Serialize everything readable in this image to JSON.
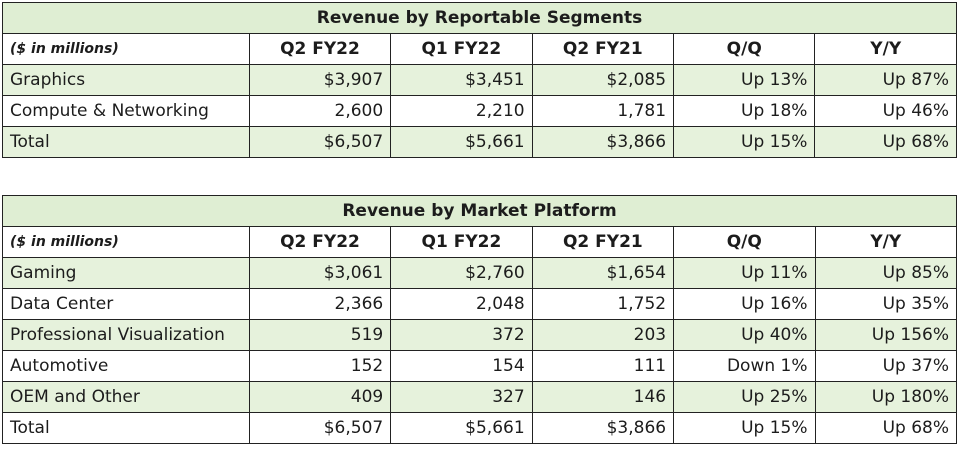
{
  "chart_data": [
    {
      "type": "table",
      "title": "Revenue by Reportable Segments",
      "columns": [
        "($ in millions)",
        "Q2 FY22",
        "Q1 FY22",
        "Q2 FY21",
        "Q/Q",
        "Y/Y"
      ],
      "rows": [
        {
          "label": "Graphics",
          "cells": [
            "$3,907",
            "$3,451",
            "$2,085",
            "Up 13%",
            "Up 87%"
          ],
          "shaded": true
        },
        {
          "label": "Compute & Networking",
          "cells": [
            "2,600",
            "2,210",
            "1,781",
            "Up 18%",
            "Up 46%"
          ],
          "shaded": false
        },
        {
          "label": "Total",
          "cells": [
            "$6,507",
            "$5,661",
            "$3,866",
            "Up 15%",
            "Up 68%"
          ],
          "shaded": true
        }
      ]
    },
    {
      "type": "table",
      "title": "Revenue by Market Platform",
      "columns": [
        "($ in millions)",
        "Q2 FY22",
        "Q1 FY22",
        "Q2 FY21",
        "Q/Q",
        "Y/Y"
      ],
      "rows": [
        {
          "label": "Gaming",
          "cells": [
            "$3,061",
            "$2,760",
            "$1,654",
            "Up 11%",
            "Up 85%"
          ],
          "shaded": true
        },
        {
          "label": "Data Center",
          "cells": [
            "2,366",
            "2,048",
            "1,752",
            "Up 16%",
            "Up 35%"
          ],
          "shaded": false
        },
        {
          "label": "Professional Visualization",
          "cells": [
            "519",
            "372",
            "203",
            "Up 40%",
            "Up 156%"
          ],
          "shaded": true
        },
        {
          "label": "Automotive",
          "cells": [
            "152",
            "154",
            "111",
            "Down 1%",
            "Up 37%"
          ],
          "shaded": false
        },
        {
          "label": "OEM and Other",
          "cells": [
            "409",
            "327",
            "146",
            "Up 25%",
            "Up 180%"
          ],
          "shaded": true
        },
        {
          "label": "Total",
          "cells": [
            "$6,507",
            "$5,661",
            "$3,866",
            "Up 15%",
            "Up 68%"
          ],
          "shaded": false
        }
      ]
    }
  ],
  "colors": {
    "header_fill": "#dfeed3",
    "row_fill": "#e6f2dc",
    "border": "#222222"
  }
}
